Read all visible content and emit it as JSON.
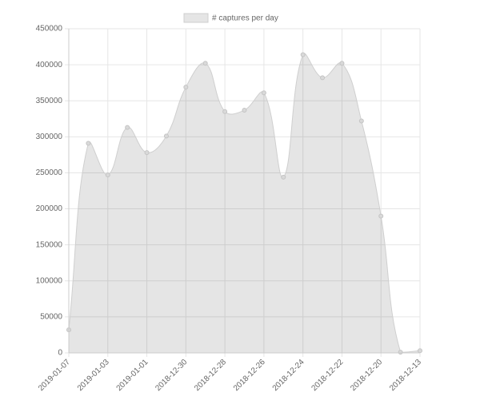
{
  "chart_data": {
    "type": "line",
    "fill": true,
    "legend_label": "# captures per day",
    "categories": [
      "2019-01-07",
      null,
      "2019-01-03",
      null,
      "2019-01-01",
      null,
      "2018-12-30",
      null,
      "2018-12-28",
      null,
      "2018-12-26",
      null,
      "2018-12-24",
      null,
      "2018-12-22",
      null,
      "2018-12-20",
      null,
      "2018-12-13"
    ],
    "values": [
      32000,
      291000,
      247000,
      313000,
      278000,
      301000,
      369000,
      402000,
      335000,
      337000,
      361000,
      244000,
      414000,
      382000,
      402000,
      322000,
      190000,
      1000,
      3000
    ],
    "color": "#cfcfcf",
    "ylim": [
      0,
      450000
    ],
    "yticks": [
      0,
      50000,
      100000,
      150000,
      200000,
      250000,
      300000,
      350000,
      400000,
      450000
    ],
    "grid": true
  }
}
